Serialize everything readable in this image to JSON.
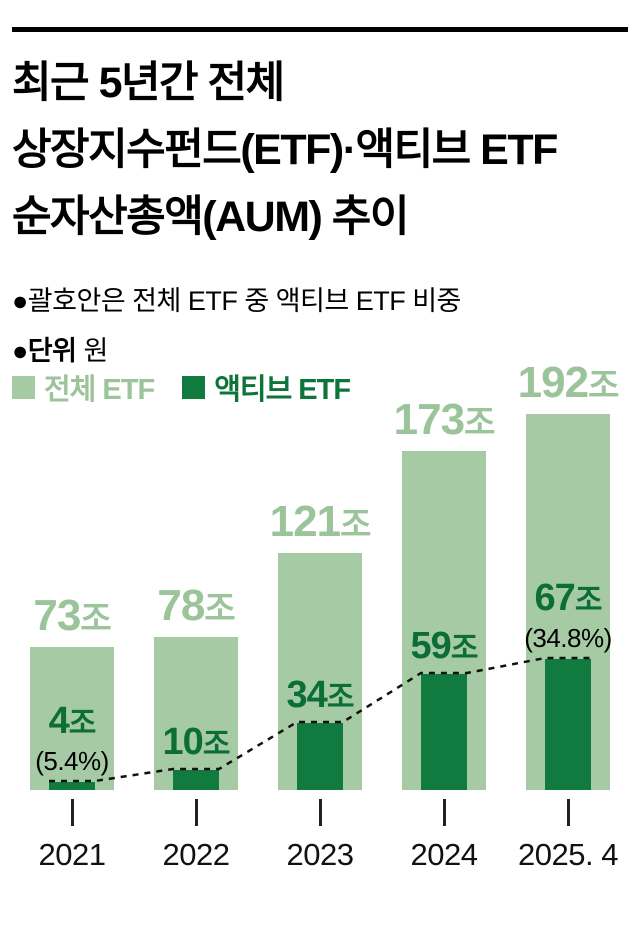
{
  "header": {
    "title_lines": [
      "최근 5년간 전체",
      "상장지수펀드(ETF)·액티브 ETF",
      "순자산총액(AUM) 추이"
    ]
  },
  "notes": {
    "bracket_note": "●괄호안은 전체 ETF 중 액티브 ETF 비중",
    "unit_bullet_bold": "●단위",
    "unit_rest": " 원"
  },
  "legend": {
    "total": {
      "label": "전체 ETF",
      "color": "#a6cba4"
    },
    "active": {
      "label": "액티브 ETF",
      "color": "#117a3e"
    }
  },
  "chart_data": {
    "type": "bar",
    "title": "최근 5년간 전체 상장지수펀드(ETF)·액티브 ETF 순자산총액(AUM) 추이",
    "unit_label": "원",
    "value_suffix": "조",
    "categories": [
      "2021",
      "2022",
      "2023",
      "2024",
      "2025. 4"
    ],
    "series": [
      {
        "name": "전체 ETF",
        "color": "#a6cba4",
        "values": [
          73,
          78,
          121,
          173,
          192
        ]
      },
      {
        "name": "액티브 ETF",
        "color": "#117a3e",
        "values": [
          4,
          10,
          34,
          59,
          67
        ]
      }
    ],
    "annotations": [
      {
        "category_index": 0,
        "text": "(5.4%)"
      },
      {
        "category_index": 4,
        "text": "(34.8%)"
      }
    ],
    "ylim": [
      0,
      192
    ],
    "grid": false,
    "legend_position": "top-left"
  }
}
